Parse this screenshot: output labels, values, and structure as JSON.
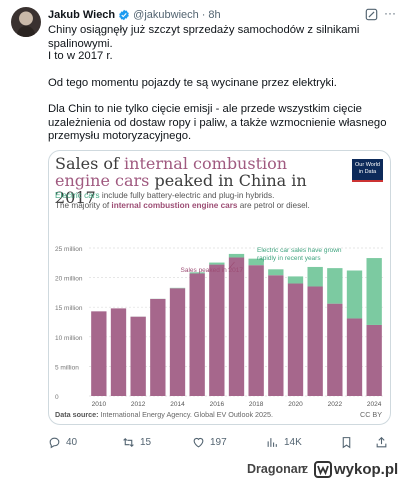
{
  "tweet": {
    "author_name": "Jakub Wiech",
    "handle": "@jakubwiech",
    "separator": "·",
    "time": "8h",
    "paragraphs": [
      "Chiny osiągnęły już szczyt sprzedaży samochodów z silnikami spalinowymi.",
      "I to w 2017 r.",
      "Od tego momentu pojazdy te są wycinane przez elektryki.",
      "Dla Chin to nie tylko cięcie emisji - ale przede wszystkim cięcie uzależnienia od dostaw ropy i paliw, a także wzmocnienie własnego przemysłu motoryzacyjnego."
    ],
    "icons": {
      "verified": "verified-badge-icon",
      "grok": "grok-icon",
      "more": "more-icon"
    }
  },
  "chart_card": {
    "title_part1": "Sales of ",
    "title_highlight": "internal combustion engine cars",
    "title_part2": " peaked in China in 2017",
    "owid_logo_line1": "Our World",
    "owid_logo_line2": "in Data",
    "subtitle_ev": "Electric cars",
    "subtitle_line1_rest": " include fully battery-electric and plug-in hybrids.",
    "subtitle_line2_start": "The majority of ",
    "subtitle_ice": "internal combustion engine cars",
    "subtitle_line2_end": " are petrol or diesel.",
    "source_label": "Data source:",
    "source_text": " International Energy Agency. Global EV Outlook 2025.",
    "license": "CC BY"
  },
  "chart_data": {
    "type": "bar",
    "stacked": true,
    "categories": [
      "2010",
      "2011",
      "2012",
      "2013",
      "2014",
      "2015",
      "2016",
      "2017",
      "2018",
      "2019",
      "2020",
      "2021",
      "2022",
      "2023",
      "2024"
    ],
    "series": [
      {
        "name": "internal combustion engine cars",
        "color": "#a6678c",
        "values": [
          14.3,
          14.8,
          13.4,
          16.4,
          18.2,
          20.7,
          22.2,
          23.4,
          22.1,
          20.4,
          19.0,
          18.5,
          15.6,
          13.1,
          12.0
        ]
      },
      {
        "name": "Electric cars",
        "color": "#7ccaa1",
        "values": [
          0.0,
          0.0,
          0.01,
          0.02,
          0.07,
          0.2,
          0.34,
          0.6,
          1.1,
          1.0,
          1.2,
          3.3,
          6.0,
          8.1,
          11.3
        ]
      }
    ],
    "y_ticks": [
      "0",
      "5 million",
      "10 million",
      "15 million",
      "20 million",
      "25 million"
    ],
    "x_ticks": [
      "2010",
      "2012",
      "2014",
      "2016",
      "2018",
      "2020",
      "2022",
      "2024"
    ],
    "ylim": [
      0,
      25
    ],
    "annotations": {
      "peak": "Sales peaked in 2017",
      "ev_line1": "Electric car sales have grown",
      "ev_line2": "rapidly in recent years"
    }
  },
  "actions": {
    "replies": "40",
    "reposts": "15",
    "likes": "197",
    "views": "14K"
  },
  "footer": {
    "username": "Dragonan",
    "z": "z",
    "site": "wykop.pl"
  }
}
